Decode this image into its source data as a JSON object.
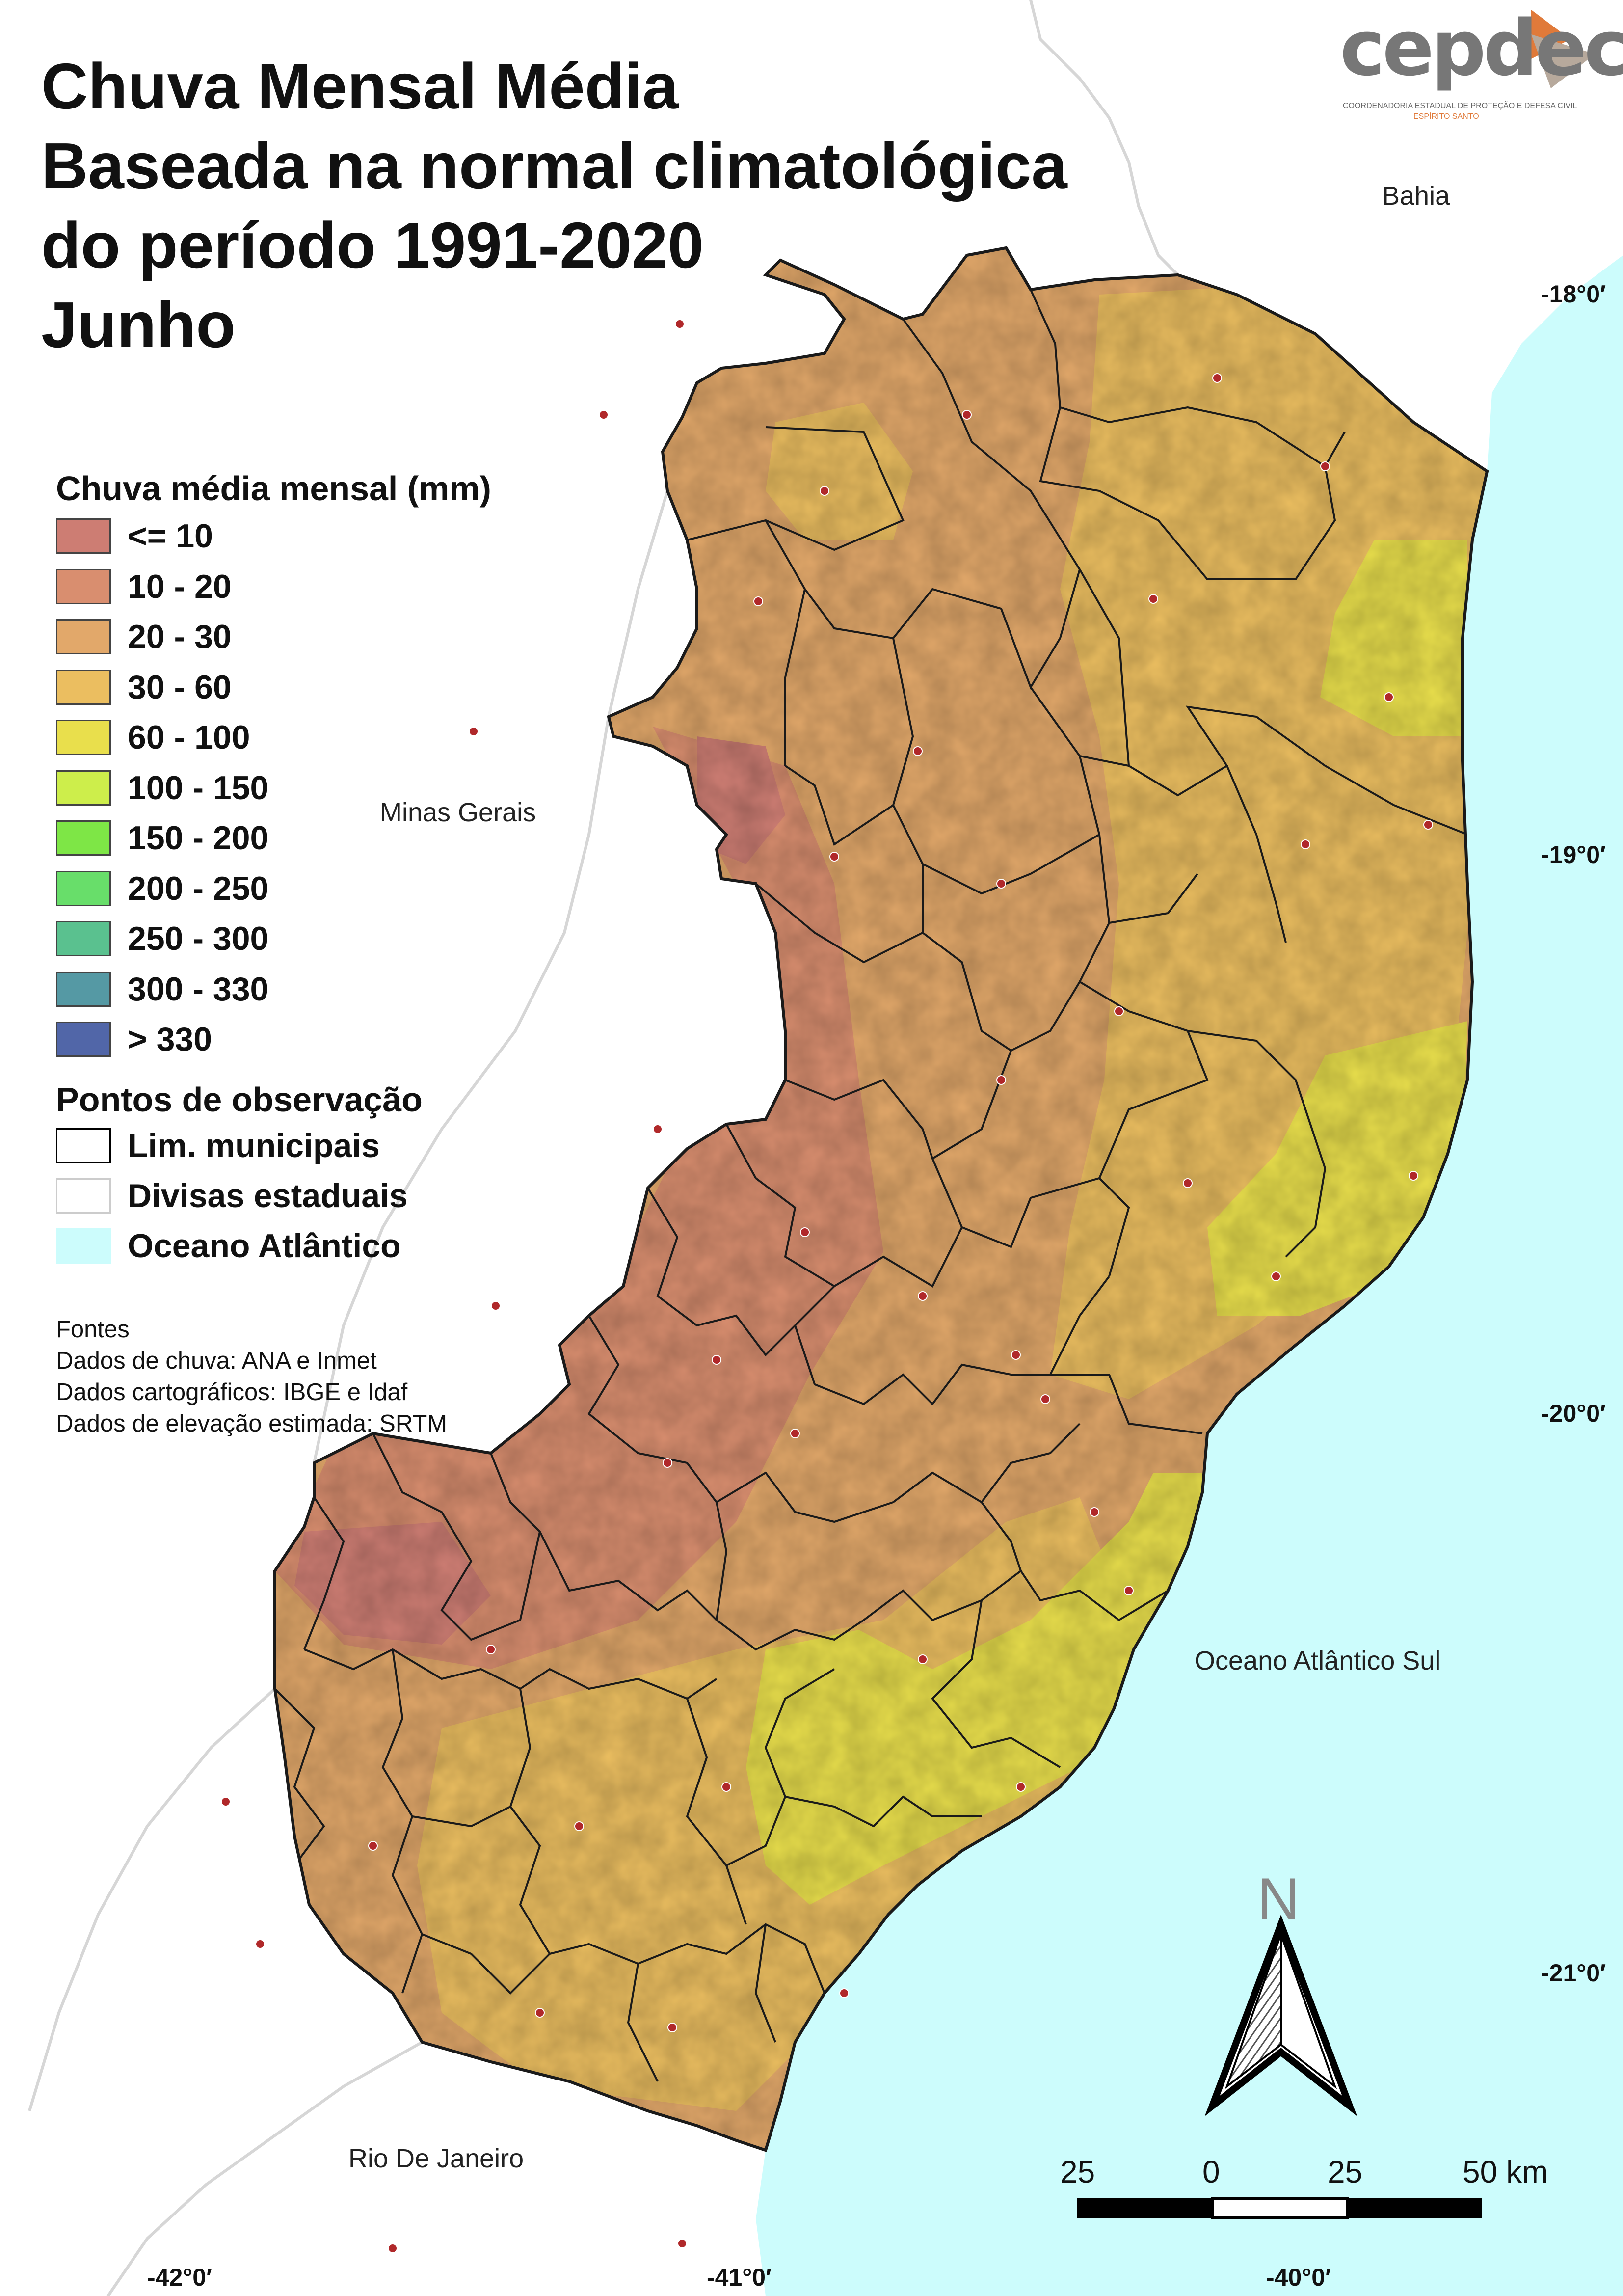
{
  "title": {
    "line1": "Chuva Mensal Média",
    "line2": "Baseada na normal climatológica",
    "line3": "do período 1991-2020",
    "line4": "Junho"
  },
  "logo": {
    "word": "cepdec",
    "subtitle": "COORDENADORIA ESTADUAL DE PROTEÇÃO E DEFESA CIVIL",
    "region": "ESPÍRITO SANTO"
  },
  "legend": {
    "title": "Chuva média mensal (mm)",
    "classes": [
      {
        "label": "<= 10",
        "color": "#cd7d73"
      },
      {
        "label": "10 - 20",
        "color": "#d98e6f"
      },
      {
        "label": "20 - 30",
        "color": "#e2a86a"
      },
      {
        "label": "30 - 60",
        "color": "#ebbe60"
      },
      {
        "label": "60 - 100",
        "color": "#e9df4c"
      },
      {
        "label": "100 - 150",
        "color": "#cdee4b"
      },
      {
        "label": "150 - 200",
        "color": "#7ee646"
      },
      {
        "label": "200 - 250",
        "color": "#68de6a"
      },
      {
        "label": "250 - 300",
        "color": "#5ac18f"
      },
      {
        "label": "300 - 330",
        "color": "#5599a4"
      },
      {
        "label": "> 330",
        "color": "#5166a8"
      }
    ],
    "observation_heading": "Pontos de observação",
    "layers": [
      {
        "label": "Lim. municipais",
        "fill": "#ffffff",
        "stroke": "#000000"
      },
      {
        "label": "Divisas estaduais",
        "fill": "#ffffff",
        "stroke": "#cccccc"
      },
      {
        "label": "Oceano Atlântico",
        "fill": "#ccfcfc",
        "stroke": "#ccfcfc"
      }
    ]
  },
  "sources": {
    "heading": "Fontes",
    "lines": [
      "Dados de chuva: ANA e Inmet",
      "Dados cartográficos: IBGE e Idaf",
      "Dados de elevação estimada: SRTM"
    ]
  },
  "places": {
    "bahia": "Bahia",
    "minas_gerais": "Minas Gerais",
    "oceano": "Oceano Atlântico Sul",
    "rio": "Rio De Janeiro"
  },
  "coordinates": {
    "lat": [
      "-18°0′",
      "-19°0′",
      "-20°0′",
      "-21°0′"
    ],
    "lon": [
      "-42°0′",
      "-41°0′",
      "-40°0′"
    ]
  },
  "north_arrow": {
    "letter": "N"
  },
  "scale_bar": {
    "labels": [
      "25",
      "0",
      "25",
      "50 km"
    ]
  },
  "colors": {
    "ocean": "#ccfcfc",
    "state_border": "#d6d6d6",
    "municipal_border": "#1a1a1a"
  }
}
